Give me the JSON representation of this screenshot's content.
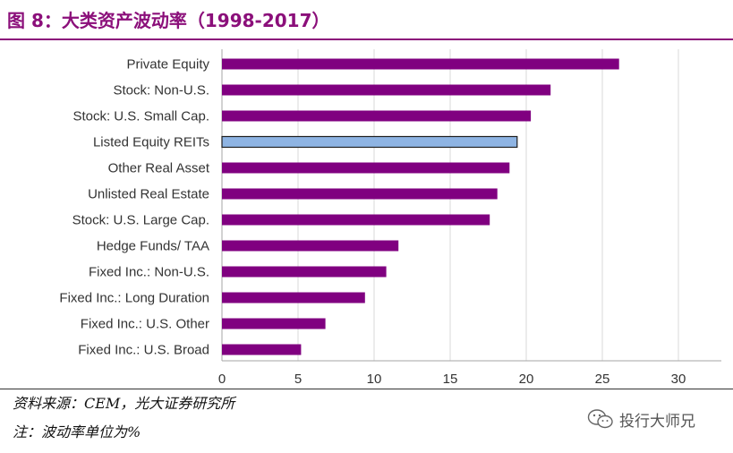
{
  "header": {
    "title": "图 8：大类资产波动率（1998-2017）"
  },
  "footer": {
    "source": "资料来源：CEM，光大证券研究所",
    "note": "注：波动率单位为%",
    "watermark_text": "投行大师兄",
    "watermark_icon": "wechat-icon"
  },
  "colors": {
    "accent": "#8B0F7A",
    "bar": "#800080",
    "highlight_bar": "#8EB4E3"
  },
  "chart_data": {
    "type": "bar",
    "orientation": "horizontal",
    "categories": [
      "Private Equity",
      "Stock: Non-U.S.",
      "Stock: U.S. Small Cap.",
      "Listed Equity REITs",
      "Other Real Asset",
      "Unlisted Real Estate",
      "Stock: U.S. Large Cap.",
      "Hedge Funds/ TAA",
      "Fixed Inc.: Non-U.S.",
      "Fixed Inc.: Long Duration",
      "Fixed Inc.: U.S. Other",
      "Fixed Inc.: U.S. Broad"
    ],
    "values": [
      26.1,
      21.6,
      20.3,
      19.4,
      18.9,
      18.1,
      17.6,
      11.6,
      10.8,
      9.4,
      6.8,
      5.2
    ],
    "highlight_category": "Listed Equity REITs",
    "xlim": [
      0,
      32
    ],
    "xticks": [
      0,
      5,
      10,
      15,
      20,
      25,
      30
    ],
    "grid": true,
    "xlabel": "",
    "ylabel": ""
  }
}
